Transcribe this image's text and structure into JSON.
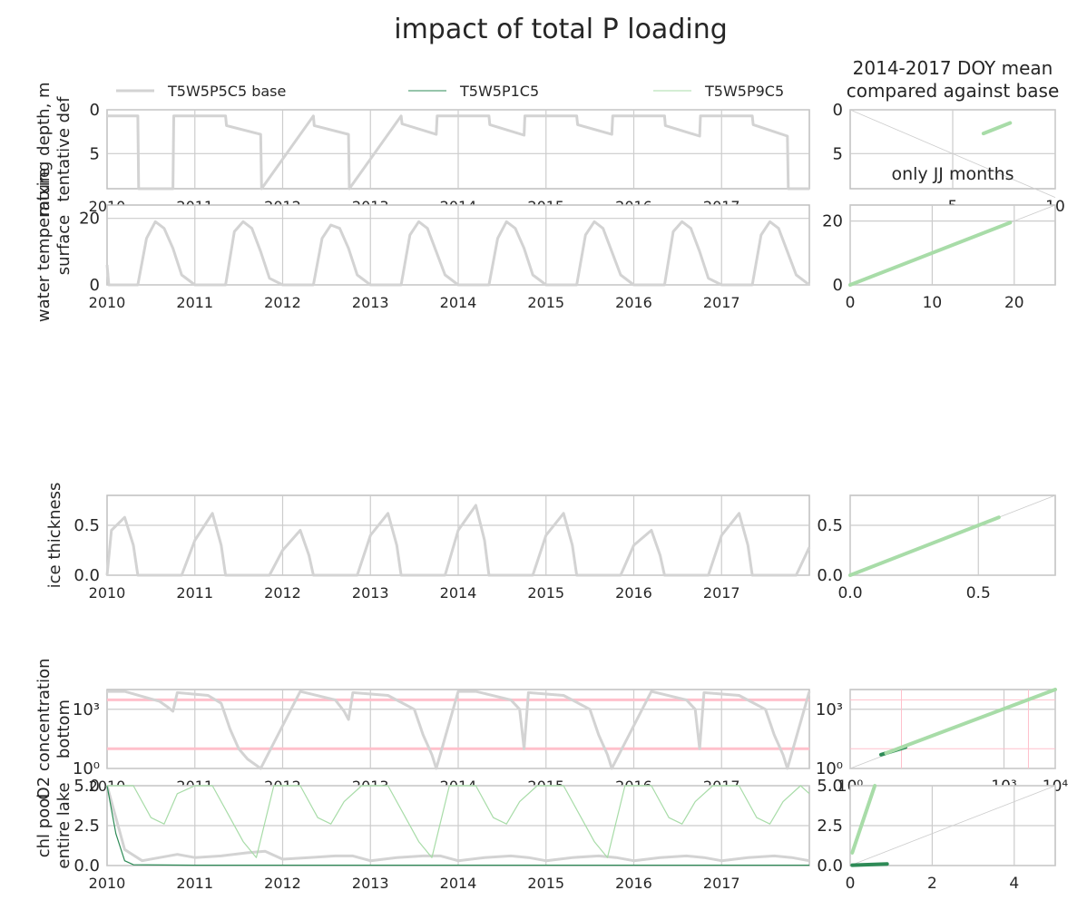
{
  "title": "impact of total P loading",
  "right_column_title_line1": "2014-2017 DOY mean",
  "right_column_title_line2": "compared against base",
  "legend": {
    "base": "T5W5P5C5 base",
    "low": "T5W5P1C5",
    "high": "T5W5P9C5"
  },
  "colors": {
    "base": "#d3d3d3",
    "low": "#2e8b57",
    "high": "#a8dca8",
    "threshold": "#ffc0cb",
    "grid": "#cccccc",
    "axes": "#bfbfbf"
  },
  "chart_data": [
    {
      "type": "line",
      "ylabel_line1": "mixing depth, m",
      "ylabel_line2": "tentative def",
      "x_ticks": [
        "2010",
        "2011",
        "2012",
        "2013",
        "2014",
        "2015",
        "2016",
        "2017"
      ],
      "xlim": [
        2010,
        2018
      ],
      "ylim": [
        9,
        0
      ],
      "y_ticks": [
        "0",
        "5"
      ],
      "y_tick_values": [
        0,
        5
      ],
      "series": [
        {
          "name": "T5W5P5C5 base",
          "x": [
            2010.0,
            2010.35,
            2010.36,
            2010.75,
            2010.76,
            2011.35,
            2011.36,
            2011.75,
            2011.76,
            2012.35,
            2012.36,
            2012.75,
            2012.76,
            2013.35,
            2013.36,
            2013.75,
            2013.76,
            2014.35,
            2014.36,
            2014.75,
            2014.76,
            2015.35,
            2015.36,
            2015.75,
            2015.76,
            2016.35,
            2016.36,
            2016.75,
            2016.76,
            2017.35,
            2017.36,
            2017.75,
            2017.76,
            2018.0
          ],
          "y": [
            0.7,
            0.7,
            9,
            9,
            0.7,
            0.7,
            1.8,
            2.8,
            9,
            0.7,
            1.8,
            2.8,
            9,
            0.7,
            1.6,
            2.8,
            0.7,
            0.7,
            1.7,
            2.9,
            0.7,
            0.7,
            1.7,
            2.8,
            0.7,
            0.7,
            1.8,
            3.0,
            0.7,
            0.7,
            1.7,
            3.0,
            9,
            9
          ]
        }
      ]
    },
    {
      "type": "line",
      "ylabel_line1": "water temperature",
      "ylabel_line2": "surface",
      "x_ticks": [
        "2010",
        "2011",
        "2012",
        "2013",
        "2014",
        "2015",
        "2016",
        "2017"
      ],
      "xlim": [
        2010,
        2018
      ],
      "ylim": [
        0,
        24
      ],
      "y_ticks": [
        "0",
        "20"
      ],
      "y_tick_values": [
        0,
        20
      ],
      "series": [
        {
          "name": "T5W5P5C5 base",
          "x": [
            2010.0,
            2010.02,
            2010.35,
            2010.45,
            2010.55,
            2010.65,
            2010.75,
            2010.85,
            2011.0,
            2011.35,
            2011.45,
            2011.55,
            2011.65,
            2011.75,
            2011.85,
            2012.0,
            2012.35,
            2012.45,
            2012.55,
            2012.65,
            2012.75,
            2012.85,
            2013.0,
            2013.35,
            2013.45,
            2013.55,
            2013.65,
            2013.75,
            2013.85,
            2014.0,
            2014.35,
            2014.45,
            2014.55,
            2014.65,
            2014.75,
            2014.85,
            2015.0,
            2015.35,
            2015.45,
            2015.55,
            2015.65,
            2015.75,
            2015.85,
            2016.0,
            2016.35,
            2016.45,
            2016.55,
            2016.65,
            2016.75,
            2016.85,
            2017.0,
            2017.35,
            2017.45,
            2017.55,
            2017.65,
            2017.75,
            2017.85,
            2018.0
          ],
          "y": [
            6,
            0,
            0,
            14,
            19,
            17,
            11,
            3,
            0,
            0,
            16,
            19,
            17,
            10,
            2,
            0,
            0,
            14,
            18,
            17,
            11,
            3,
            0,
            0,
            15,
            19,
            17,
            10,
            3,
            0,
            0,
            14,
            19,
            17,
            11,
            3,
            0,
            0,
            15,
            19,
            17,
            10,
            3,
            0,
            0,
            16,
            19,
            17,
            10,
            2,
            0,
            0,
            15,
            19,
            17,
            10,
            3,
            0
          ]
        }
      ]
    },
    {
      "type": "line",
      "ylabel_line1": "ice thickness",
      "x_ticks": [
        "2010",
        "2011",
        "2012",
        "2013",
        "2014",
        "2015",
        "2016",
        "2017"
      ],
      "xlim": [
        2010,
        2018
      ],
      "ylim": [
        0,
        0.8
      ],
      "y_ticks": [
        "0.0",
        "0.5"
      ],
      "y_tick_values": [
        0,
        0.5
      ],
      "series": [
        {
          "name": "T5W5P5C5 base",
          "x": [
            2010.0,
            2010.05,
            2010.2,
            2010.3,
            2010.35,
            2010.85,
            2011.0,
            2011.2,
            2011.3,
            2011.35,
            2011.85,
            2012.0,
            2012.2,
            2012.3,
            2012.35,
            2012.85,
            2013.0,
            2013.2,
            2013.3,
            2013.35,
            2013.85,
            2014.0,
            2014.2,
            2014.3,
            2014.35,
            2014.85,
            2015.0,
            2015.2,
            2015.3,
            2015.35,
            2015.85,
            2016.0,
            2016.2,
            2016.3,
            2016.35,
            2016.85,
            2017.0,
            2017.2,
            2017.3,
            2017.35,
            2017.85,
            2018.0
          ],
          "y": [
            0,
            0.45,
            0.58,
            0.3,
            0,
            0,
            0.35,
            0.62,
            0.3,
            0,
            0,
            0.25,
            0.45,
            0.2,
            0,
            0,
            0.4,
            0.62,
            0.3,
            0,
            0,
            0.45,
            0.7,
            0.35,
            0,
            0,
            0.4,
            0.62,
            0.3,
            0,
            0,
            0.3,
            0.45,
            0.2,
            0,
            0,
            0.4,
            0.62,
            0.3,
            0,
            0,
            0.28
          ]
        }
      ]
    },
    {
      "type": "line",
      "ylabel_line1": "O2 concentration",
      "ylabel_line2": "bottom",
      "y_scale": "log",
      "x_ticks": [
        "2010",
        "2011",
        "2012",
        "2013",
        "2014",
        "2015",
        "2016",
        "2017"
      ],
      "xlim": [
        2010,
        2018
      ],
      "ylim": [
        1,
        10000
      ],
      "y_ticks": [
        "10³",
        "10⁰"
      ],
      "y_tick_values": [
        1000,
        1
      ],
      "thresholds": [
        3000,
        10
      ],
      "series": [
        {
          "name": "T5W5P5C5 base",
          "x": [
            2010.0,
            2010.2,
            2010.6,
            2010.7,
            2010.75,
            2010.8,
            2011.15,
            2011.3,
            2011.4,
            2011.5,
            2011.6,
            2011.75,
            2012.2,
            2012.6,
            2012.7,
            2012.75,
            2012.8,
            2013.2,
            2013.5,
            2013.6,
            2013.7,
            2013.75,
            2014.0,
            2014.2,
            2014.6,
            2014.7,
            2014.75,
            2014.8,
            2015.2,
            2015.5,
            2015.6,
            2015.7,
            2015.75,
            2016.2,
            2016.6,
            2016.7,
            2016.75,
            2016.8,
            2017.2,
            2017.5,
            2017.6,
            2017.7,
            2017.75,
            2018.0
          ],
          "y": [
            8000,
            8000,
            2500,
            1200,
            800,
            7000,
            5000,
            2000,
            100,
            10,
            3,
            1,
            8000,
            3000,
            800,
            300,
            7000,
            5000,
            1000,
            50,
            5,
            1,
            8000,
            8000,
            3000,
            1000,
            10,
            7000,
            5000,
            1000,
            50,
            5,
            1,
            8000,
            3000,
            1000,
            10,
            7000,
            5000,
            1000,
            50,
            5,
            1,
            8000
          ]
        }
      ]
    },
    {
      "type": "line",
      "ylabel_line1": "chl pool",
      "ylabel_line2": "entire lake",
      "x_ticks": [
        "2010",
        "2011",
        "2012",
        "2013",
        "2014",
        "2015",
        "2016",
        "2017"
      ],
      "xlim": [
        2010,
        2018
      ],
      "ylim": [
        0,
        5
      ],
      "y_ticks": [
        "0.0",
        "2.5",
        "5.0"
      ],
      "y_tick_values": [
        0,
        2.5,
        5
      ],
      "series": [
        {
          "name": "T5W5P5C5 base",
          "x": [
            2010.0,
            2010.2,
            2010.4,
            2010.6,
            2010.8,
            2011.0,
            2011.3,
            2011.6,
            2011.8,
            2012.0,
            2012.3,
            2012.6,
            2012.8,
            2013.0,
            2013.3,
            2013.6,
            2013.8,
            2014.0,
            2014.3,
            2014.6,
            2014.8,
            2015.0,
            2015.3,
            2015.6,
            2015.8,
            2016.0,
            2016.3,
            2016.6,
            2016.8,
            2017.0,
            2017.3,
            2017.6,
            2017.8,
            2018.0
          ],
          "y": [
            5,
            1,
            0.3,
            0.5,
            0.7,
            0.5,
            0.6,
            0.8,
            0.9,
            0.4,
            0.5,
            0.6,
            0.6,
            0.3,
            0.5,
            0.6,
            0.6,
            0.3,
            0.5,
            0.6,
            0.5,
            0.3,
            0.5,
            0.6,
            0.5,
            0.3,
            0.5,
            0.6,
            0.5,
            0.3,
            0.5,
            0.6,
            0.5,
            0.3
          ]
        },
        {
          "name": "T5W5P1C5",
          "x": [
            2010.0,
            2010.1,
            2010.2,
            2010.3,
            2011.0,
            2012.0,
            2013.0,
            2014.0,
            2015.0,
            2016.0,
            2017.0,
            2018.0
          ],
          "y": [
            5,
            2,
            0.3,
            0.05,
            0.02,
            0.02,
            0.02,
            0.02,
            0.02,
            0.02,
            0.02,
            0.02
          ]
        },
        {
          "name": "T5W5P9C5",
          "x": [
            2010.0,
            2010.3,
            2010.5,
            2010.65,
            2010.8,
            2011.0,
            2011.2,
            2011.4,
            2011.55,
            2011.7,
            2011.9,
            2012.2,
            2012.4,
            2012.55,
            2012.7,
            2012.9,
            2013.2,
            2013.4,
            2013.55,
            2013.7,
            2013.9,
            2014.2,
            2014.4,
            2014.55,
            2014.7,
            2014.9,
            2015.2,
            2015.4,
            2015.55,
            2015.7,
            2015.9,
            2016.2,
            2016.4,
            2016.55,
            2016.7,
            2016.9,
            2017.2,
            2017.4,
            2017.55,
            2017.7,
            2017.9,
            2018.0
          ],
          "y": [
            5,
            5,
            3,
            2.6,
            4.5,
            5,
            5,
            3,
            1.5,
            0.5,
            5,
            5,
            3,
            2.6,
            4,
            5,
            5,
            3,
            1.5,
            0.5,
            5,
            5,
            3,
            2.6,
            4,
            5,
            5,
            3,
            1.5,
            0.5,
            5,
            5,
            3,
            2.6,
            4,
            5,
            5,
            3,
            2.6,
            4,
            5,
            4.5
          ]
        }
      ]
    }
  ],
  "scatter_data": [
    {
      "type": "scatter",
      "xlim": [
        0,
        10
      ],
      "ylim": [
        9,
        0
      ],
      "y_ticks": [
        "0",
        "5"
      ],
      "y_tick_values": [
        0,
        5
      ],
      "x_ticks": [
        "5",
        "10"
      ],
      "x_tick_values": [
        5,
        10
      ],
      "note": "only JJ months",
      "series": [
        {
          "name": "T5W5P9C5",
          "x": [
            6.5,
            7.8
          ],
          "y": [
            2.7,
            1.5
          ]
        }
      ]
    },
    {
      "type": "scatter",
      "xlim": [
        0,
        25
      ],
      "ylim": [
        0,
        25
      ],
      "x_ticks": [
        "0",
        "10",
        "20"
      ],
      "x_tick_values": [
        0,
        10,
        20
      ],
      "y_ticks": [
        "0",
        "20"
      ],
      "y_tick_values": [
        0,
        20
      ],
      "series": [
        {
          "name": "T5W5P9C5",
          "x": [
            0,
            19.5
          ],
          "y": [
            0,
            19.5
          ]
        }
      ]
    },
    {
      "type": "scatter",
      "xlim": [
        0,
        0.8
      ],
      "ylim": [
        0,
        0.8
      ],
      "x_ticks": [
        "0.0",
        "0.5"
      ],
      "x_tick_values": [
        0,
        0.5
      ],
      "y_ticks": [
        "0.0",
        "0.5"
      ],
      "y_tick_values": [
        0,
        0.5
      ],
      "series": [
        {
          "name": "T5W5P9C5",
          "x": [
            0,
            0.58
          ],
          "y": [
            0,
            0.58
          ]
        }
      ]
    },
    {
      "type": "scatter",
      "x_scale": "log",
      "y_scale": "log",
      "xlim": [
        1,
        10000
      ],
      "ylim": [
        1,
        10000
      ],
      "x_ticks": [
        "10⁰",
        "10³",
        "10⁴"
      ],
      "x_tick_values": [
        1,
        1000,
        10000
      ],
      "y_ticks": [
        "10³",
        "10⁰"
      ],
      "y_tick_values": [
        1000,
        1
      ],
      "thresholds": [
        3000,
        10
      ],
      "series": [
        {
          "name": "T5W5P1C5",
          "x": [
            4,
            12
          ],
          "y": [
            5,
            12
          ]
        },
        {
          "name": "T5W5P9C5",
          "x": [
            5,
            10000
          ],
          "y": [
            6,
            10000
          ]
        }
      ]
    },
    {
      "type": "scatter",
      "xlim": [
        0,
        5
      ],
      "ylim": [
        0,
        5
      ],
      "x_ticks": [
        "0",
        "2",
        "4"
      ],
      "x_tick_values": [
        0,
        2,
        4
      ],
      "y_ticks": [
        "0.0",
        "2.5",
        "5.0"
      ],
      "y_tick_values": [
        0,
        2.5,
        5
      ],
      "series": [
        {
          "name": "T5W5P1C5",
          "x": [
            0.05,
            0.9
          ],
          "y": [
            0.02,
            0.1
          ]
        },
        {
          "name": "T5W5P9C5",
          "x": [
            0.05,
            0.6
          ],
          "y": [
            0.8,
            5
          ]
        }
      ]
    }
  ]
}
